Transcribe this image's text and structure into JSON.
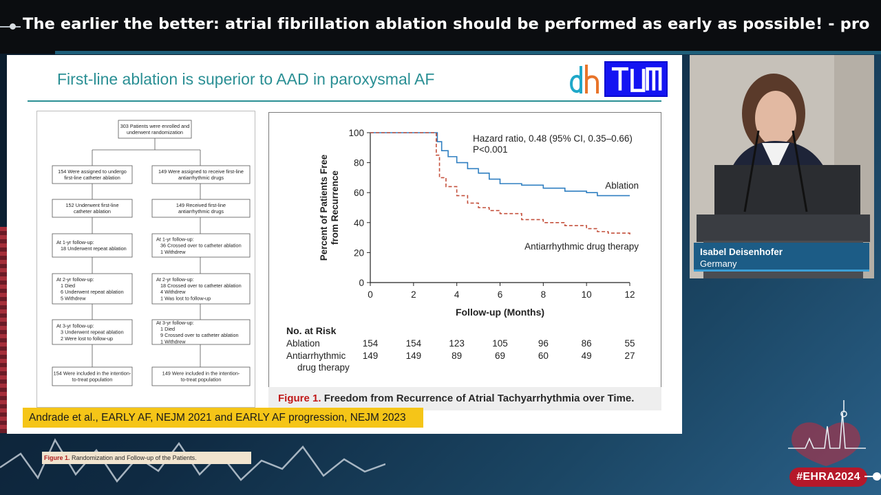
{
  "session": {
    "title": "The earlier the better: atrial fibrillation ablation should be performed as early as possible! - pro"
  },
  "slide": {
    "title": "First-line ablation is superior to AAD in paroxysmal AF",
    "logo_left": "dh",
    "logo_right": "TUM",
    "citation": "Andrade et al., EARLY AF, NEJM 2021 and EARLY AF progression, NEJM 2023"
  },
  "flowchart": {
    "top_box": [
      "303 Patients were enrolled and",
      "underwent randomization"
    ],
    "left": [
      [
        "154 Were assigned to undergo",
        "first-line catheter ablation"
      ],
      [
        "152 Underwent first-line",
        "catheter ablation"
      ],
      [
        "At 1-yr follow-up:",
        "18 Underwent repeat ablation"
      ],
      [
        "At 2-yr follow-up:",
        "1 Died",
        "6 Underwent repeat ablation",
        "5 Withdrew"
      ],
      [
        "At 3-yr follow-up:",
        "3 Underwent repeat ablation",
        "2 Were lost to follow-up"
      ],
      [
        "154 Were included in the intention-",
        "to-treat population"
      ]
    ],
    "right": [
      [
        "149 Were assigned to receive first-line",
        "antiarrhythmic drugs"
      ],
      [
        "149 Received first-line",
        "antiarrhythmic drugs"
      ],
      [
        "At 1-yr follow-up:",
        "36 Crossed over to catheter ablation",
        "1 Withdrew"
      ],
      [
        "At 2-yr follow-up:",
        "18 Crossed over to catheter ablation",
        "4 Withdrew",
        "1 Was lost to follow-up"
      ],
      [
        "At 3-yr follow-up:",
        "1 Died",
        "9 Crossed over to catheter ablation",
        "1 Withdrew"
      ],
      [
        "149 Were included in the intention-",
        "to-treat population"
      ]
    ],
    "caption_fig": "Figure 1.",
    "caption_text": "Randomization and Follow-up of the Patients."
  },
  "chart_data": {
    "type": "line",
    "title": "",
    "ylabel_line1": "Percent of Patients Free",
    "ylabel_line2": "from Recurrence",
    "xlabel": "Follow-up (Months)",
    "xlim": [
      0,
      12
    ],
    "ylim": [
      0,
      100
    ],
    "xticks": [
      "0",
      "2",
      "4",
      "6",
      "8",
      "10",
      "12"
    ],
    "yticks": [
      "0",
      "20",
      "40",
      "60",
      "80",
      "100"
    ],
    "annotation_line1": "Hazard ratio, 0.48 (95% CI, 0.35–0.66)",
    "annotation_line2": "P<0.001",
    "series": [
      {
        "name": "Ablation",
        "color": "#2f7fc1",
        "style": "solid",
        "x": [
          0,
          3.0,
          3.1,
          3.3,
          3.6,
          4.0,
          4.5,
          5.0,
          5.5,
          6.0,
          7.0,
          8.0,
          9.0,
          10.0,
          10.5,
          11.0,
          12.0
        ],
        "y": [
          100,
          100,
          94,
          88,
          84,
          80,
          76,
          73,
          69,
          66,
          65,
          63,
          61,
          60,
          58,
          58,
          58
        ]
      },
      {
        "name": "Antiarrhythmic drug therapy",
        "color": "#c4503c",
        "style": "dashed",
        "x": [
          0,
          3.0,
          3.05,
          3.2,
          3.5,
          4.0,
          4.5,
          5.0,
          5.5,
          6.0,
          7.0,
          8.0,
          9.0,
          10.0,
          10.5,
          11.0,
          12.0
        ],
        "y": [
          100,
          100,
          85,
          70,
          64,
          58,
          53,
          50,
          48,
          46,
          42,
          40,
          38,
          36,
          34,
          33,
          32
        ]
      }
    ],
    "risk_table": {
      "title": "No. at Risk",
      "rows": [
        {
          "label": [
            "Ablation"
          ],
          "values": [
            "154",
            "154",
            "123",
            "105",
            "96",
            "86",
            "55"
          ]
        },
        {
          "label": [
            "Antiarrhythmic",
            "drug therapy"
          ],
          "values": [
            "149",
            "149",
            "89",
            "69",
            "60",
            "49",
            "27"
          ]
        }
      ]
    },
    "caption_fig": "Figure 1.",
    "caption_text": "Freedom from Recurrence of Atrial Tachyarrhythmia over Time."
  },
  "speaker": {
    "name": "Isabel Deisenhofer",
    "country": "Germany"
  },
  "event": {
    "badge": "#EHRA2024"
  },
  "colors": {
    "accent_teal": "#2a8f94",
    "ehra_red": "#b5182a",
    "lower_third_blue": "#1c5c86"
  }
}
